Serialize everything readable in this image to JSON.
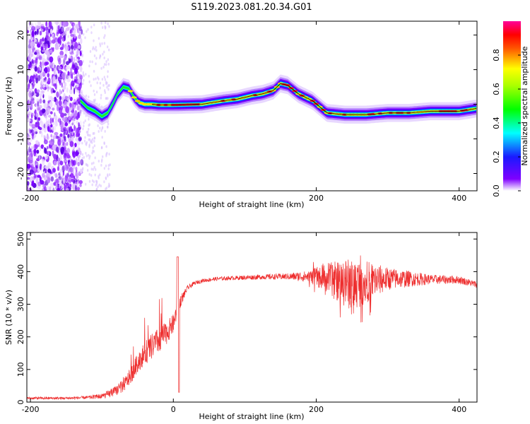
{
  "title": "S119.2023.081.20.34.G01",
  "chart_data": [
    {
      "type": "heatmap",
      "xlabel": "Height of straight line (km)",
      "ylabel": "Frequency (Hz)",
      "xlim": [
        -205,
        425
      ],
      "ylim": [
        -25,
        24
      ],
      "xticks": [
        -200,
        0,
        200,
        400
      ],
      "yticks": [
        -20,
        -10,
        0,
        10,
        20
      ],
      "colorbar": {
        "label": "Normalized spectral amplitude",
        "range": [
          0,
          1
        ],
        "ticks": [
          "0.0",
          "0.2",
          "0.4",
          "0.6",
          "0.8"
        ],
        "scale": "rainbow"
      },
      "ridge_frequency": {
        "x": [
          -130,
          -120,
          -110,
          -100,
          -92,
          -85,
          -78,
          -70,
          -62,
          -55,
          -48,
          -40,
          -30,
          -20,
          0,
          40,
          70,
          90,
          110,
          125,
          140,
          150,
          160,
          175,
          195,
          215,
          240,
          270,
          300,
          330,
          360,
          400,
          425
        ],
        "y": [
          1,
          -1,
          -2,
          -3.5,
          -2.5,
          0,
          3,
          5,
          4.5,
          2,
          0.5,
          0,
          0,
          -0.2,
          -0.2,
          0,
          1,
          1.5,
          2.5,
          3,
          4,
          6,
          5.5,
          3,
          1,
          -2.5,
          -3,
          -3,
          -2.5,
          -2.5,
          -2,
          -2,
          -1.2
        ]
      },
      "noise_region_x": [
        -205,
        -128
      ]
    },
    {
      "type": "line",
      "xlabel": "Height of straight line (km)",
      "ylabel": "SNR (10 * v/v)",
      "xlim": [
        -205,
        425
      ],
      "ylim": [
        0,
        520
      ],
      "xticks": [
        -200,
        0,
        200,
        400
      ],
      "yticks": [
        0,
        100,
        200,
        300,
        400,
        500
      ],
      "color": "#ee2d2d",
      "series": [
        {
          "x": [
            -205,
            -150,
            -120,
            -100,
            -90,
            -80,
            -70,
            -60,
            -50,
            -40,
            -30,
            -20,
            -10,
            0,
            5,
            10,
            15,
            20,
            30,
            40,
            50,
            60,
            80,
            100,
            130,
            160,
            190,
            200,
            220,
            240,
            250,
            260,
            280,
            300,
            330,
            360,
            400,
            425
          ],
          "y": [
            12,
            12,
            14,
            18,
            25,
            35,
            50,
            80,
            120,
            150,
            170,
            190,
            210,
            240,
            280,
            310,
            330,
            350,
            365,
            372,
            375,
            378,
            380,
            382,
            384,
            385,
            385,
            384,
            378,
            365,
            360,
            365,
            372,
            378,
            378,
            376,
            375,
            360
          ],
          "noise_amplitude": [
            4,
            4,
            5,
            8,
            12,
            15,
            20,
            25,
            30,
            35,
            40,
            40,
            35,
            30,
            25,
            20,
            12,
            8,
            6,
            6,
            6,
            6,
            6,
            7,
            8,
            10,
            18,
            30,
            50,
            75,
            80,
            75,
            55,
            35,
            25,
            15,
            12,
            10
          ]
        }
      ]
    }
  ]
}
